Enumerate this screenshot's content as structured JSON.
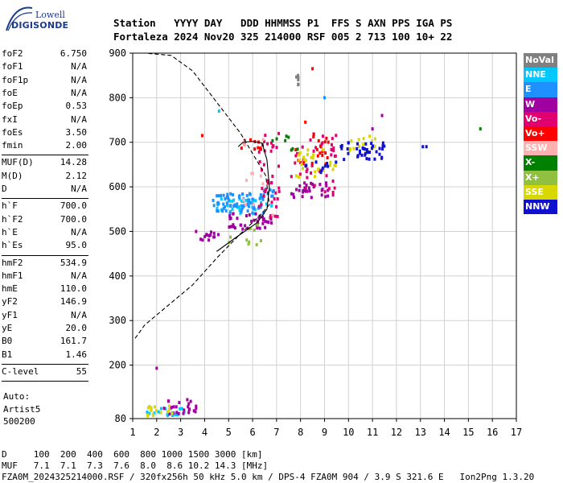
{
  "logo": {
    "line1": "Lowell",
    "line2": "DIGISONDE"
  },
  "header": {
    "line1": "Station   YYYY DAY   DDD HHMMSS P1  FFS S AXN PPS IGA PS",
    "line2": "Fortaleza 2024 Nov20 325 214000 RSF 005 2 713 100 10+ 22"
  },
  "params_group1": [
    {
      "k": "foF2",
      "v": "6.750"
    },
    {
      "k": "foF1",
      "v": "N/A"
    },
    {
      "k": "foF1p",
      "v": "N/A"
    },
    {
      "k": "foE",
      "v": "N/A"
    },
    {
      "k": "foEp",
      "v": "0.53"
    },
    {
      "k": "fxI",
      "v": "N/A"
    },
    {
      "k": "foEs",
      "v": "3.50"
    },
    {
      "k": "fmin",
      "v": "2.00"
    }
  ],
  "params_group2": [
    {
      "k": "MUF(D)",
      "v": "14.28"
    },
    {
      "k": "M(D)",
      "v": "2.12"
    },
    {
      "k": "D",
      "v": "N/A"
    }
  ],
  "params_group3": [
    {
      "k": "h`F",
      "v": "700.0"
    },
    {
      "k": "h`F2",
      "v": "700.0"
    },
    {
      "k": "h`E",
      "v": "N/A"
    },
    {
      "k": "h`Es",
      "v": "95.0"
    }
  ],
  "params_group4": [
    {
      "k": "hmF2",
      "v": "534.9"
    },
    {
      "k": "hmF1",
      "v": "N/A"
    },
    {
      "k": "hmE",
      "v": "110.0"
    },
    {
      "k": "yF2",
      "v": "146.9"
    },
    {
      "k": "yF1",
      "v": "N/A"
    },
    {
      "k": "yE",
      "v": "20.0"
    },
    {
      "k": "B0",
      "v": "161.7"
    },
    {
      "k": "B1",
      "v": "1.46"
    }
  ],
  "params_group5": [
    {
      "k": "C-level",
      "v": "55"
    }
  ],
  "auto": {
    "l1": "Auto:",
    "l2": "Artist5",
    "l3": "500200"
  },
  "legend": [
    {
      "label": "NoVal",
      "color": "#808080"
    },
    {
      "label": "NNE",
      "color": "#00c8ff"
    },
    {
      "label": "E",
      "color": "#1e90ff"
    },
    {
      "label": "W",
      "color": "#a000a0"
    },
    {
      "label": "Vo-",
      "color": "#e00070"
    },
    {
      "label": "Vo+",
      "color": "#ff0000"
    },
    {
      "label": "SSW",
      "color": "#ffb0b0"
    },
    {
      "label": "X-",
      "color": "#008000"
    },
    {
      "label": "X+",
      "color": "#90c040"
    },
    {
      "label": "SSE",
      "color": "#d8d800"
    },
    {
      "label": "NNW",
      "color": "#1010d0"
    }
  ],
  "footer": {
    "row1": "D     100  200  400  600  800 1000 1500 3000 [km]",
    "row2": "MUF   7.1  7.1  7.3  7.6  8.0  8.6 10.2 14.3 [MHz]",
    "row3": "FZA0M_2024325214000.RSF / 320fx256h 50 kHz 5.0 km / DPS-4 FZA0M 904 / 3.9 S 321.6 E   Ion2Png 1.3.20"
  },
  "chart_data": {
    "type": "scatter",
    "xlim": [
      1,
      17
    ],
    "ylim": [
      80,
      900
    ],
    "xticks": [
      1,
      2,
      3,
      4,
      5,
      6,
      7,
      8,
      9,
      10,
      11,
      12,
      13,
      14,
      15,
      16,
      17
    ],
    "yticks": [
      80,
      200,
      300,
      400,
      500,
      600,
      700,
      800,
      900
    ],
    "grid": true,
    "profile": {
      "style": "dashed",
      "points": [
        [
          1.1,
          260
        ],
        [
          1.5,
          290
        ],
        [
          2.5,
          335
        ],
        [
          3.5,
          380
        ],
        [
          4.5,
          440
        ],
        [
          5.5,
          495
        ],
        [
          6.3,
          535
        ],
        [
          6.7,
          560
        ],
        [
          6.55,
          625
        ],
        [
          5.5,
          720
        ],
        [
          4.5,
          790
        ],
        [
          3.5,
          860
        ],
        [
          2.6,
          895
        ],
        [
          1.5,
          900
        ]
      ]
    },
    "trace": {
      "style": "solid",
      "points": [
        [
          4.5,
          455
        ],
        [
          5.4,
          490
        ],
        [
          6.2,
          520
        ],
        [
          6.6,
          550
        ],
        [
          6.7,
          600
        ],
        [
          6.6,
          660
        ],
        [
          6.4,
          698
        ],
        [
          6.0,
          702
        ],
        [
          5.6,
          700
        ],
        [
          5.4,
          690
        ]
      ]
    },
    "clusters": [
      {
        "color": "#808080",
        "x0": 7.8,
        "x1": 7.95,
        "y0": 820,
        "y1": 850,
        "n": 6
      },
      {
        "color": "#00c8ff",
        "x0": 1.4,
        "x1": 3.2,
        "y0": 85,
        "y1": 105,
        "n": 20
      },
      {
        "color": "#00c8ff",
        "x0": 4.5,
        "x1": 6.8,
        "y0": 540,
        "y1": 575,
        "n": 40
      },
      {
        "color": "#1e90ff",
        "x0": 4.3,
        "x1": 6.5,
        "y0": 540,
        "y1": 585,
        "n": 60
      },
      {
        "color": "#1e90ff",
        "x0": 6.3,
        "x1": 7.0,
        "y0": 575,
        "y1": 595,
        "n": 12
      },
      {
        "color": "#a000a0",
        "x0": 3.6,
        "x1": 4.6,
        "y0": 478,
        "y1": 500,
        "n": 14
      },
      {
        "color": "#a000a0",
        "x0": 5.0,
        "x1": 6.8,
        "y0": 505,
        "y1": 540,
        "n": 40
      },
      {
        "color": "#a000a0",
        "x0": 7.6,
        "x1": 9.2,
        "y0": 575,
        "y1": 610,
        "n": 30
      },
      {
        "color": "#a000a0",
        "x0": 2.3,
        "x1": 3.7,
        "y0": 90,
        "y1": 125,
        "n": 25
      },
      {
        "color": "#e00070",
        "x0": 6.2,
        "x1": 7.2,
        "y0": 530,
        "y1": 720,
        "n": 40
      },
      {
        "color": "#e00070",
        "x0": 7.6,
        "x1": 9.5,
        "y0": 580,
        "y1": 720,
        "n": 45
      },
      {
        "color": "#ff0000",
        "x0": 7.8,
        "x1": 9.2,
        "y0": 650,
        "y1": 720,
        "n": 20
      },
      {
        "color": "#ff0000",
        "x0": 5.5,
        "x1": 7.0,
        "y0": 680,
        "y1": 710,
        "n": 10
      },
      {
        "color": "#ffb0b0",
        "x0": 5.6,
        "x1": 7.0,
        "y0": 500,
        "y1": 720,
        "n": 12
      },
      {
        "color": "#008000",
        "x0": 6.8,
        "x1": 8.0,
        "y0": 680,
        "y1": 720,
        "n": 8
      },
      {
        "color": "#90c040",
        "x0": 5.0,
        "x1": 6.6,
        "y0": 470,
        "y1": 520,
        "n": 10
      },
      {
        "color": "#d8d800",
        "x0": 7.8,
        "x1": 9.5,
        "y0": 620,
        "y1": 690,
        "n": 25
      },
      {
        "color": "#d8d800",
        "x0": 9.8,
        "x1": 11.2,
        "y0": 680,
        "y1": 715,
        "n": 15
      },
      {
        "color": "#d8d800",
        "x0": 1.6,
        "x1": 3.0,
        "y0": 85,
        "y1": 110,
        "n": 15
      },
      {
        "color": "#1010d0",
        "x0": 9.6,
        "x1": 11.5,
        "y0": 660,
        "y1": 700,
        "n": 40
      },
      {
        "color": "#1010d0",
        "x0": 8.2,
        "x1": 9.6,
        "y0": 630,
        "y1": 660,
        "n": 10
      }
    ],
    "singles": [
      {
        "x": 2.0,
        "y": 193,
        "color": "#a000a0"
      },
      {
        "x": 4.6,
        "y": 770,
        "color": "#00c8ff"
      },
      {
        "x": 3.9,
        "y": 715,
        "color": "#ff0000"
      },
      {
        "x": 8.5,
        "y": 865,
        "color": "#ff0000"
      },
      {
        "x": 8.2,
        "y": 745,
        "color": "#ff0000"
      },
      {
        "x": 13.1,
        "y": 690,
        "color": "#1010d0"
      },
      {
        "x": 13.25,
        "y": 690,
        "color": "#1010d0"
      },
      {
        "x": 15.5,
        "y": 730,
        "color": "#008000"
      },
      {
        "x": 11.4,
        "y": 760,
        "color": "#a000a0"
      },
      {
        "x": 11.0,
        "y": 730,
        "color": "#a000a0"
      },
      {
        "x": 9.0,
        "y": 800,
        "color": "#1e90ff"
      }
    ]
  }
}
